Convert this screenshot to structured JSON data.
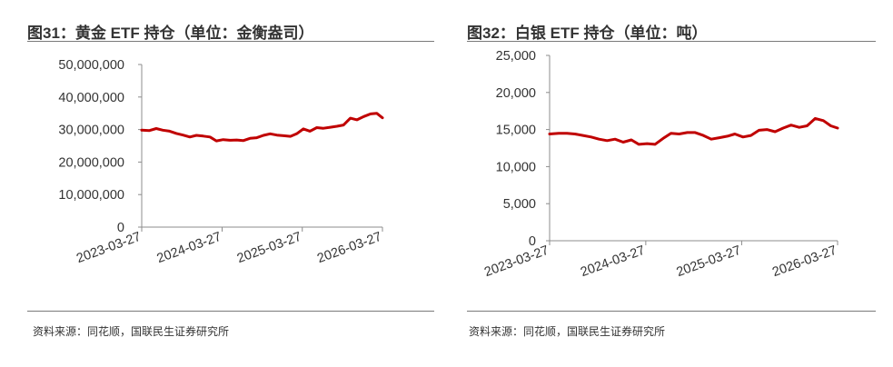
{
  "charts": [
    {
      "id": "left",
      "title": "图31：黄金 ETF 持仓（单位：金衡盎司）",
      "source": "资料来源：同花顺，国联民生证券研究所",
      "y_ticks": [
        "50,000,000",
        "40,000,000",
        "30,000,000",
        "20,000,000",
        "10,000,000",
        "0"
      ],
      "x_ticks": [
        "2023-03-27",
        "2024-03-27",
        "2025-03-27",
        "2026-03-27"
      ]
    },
    {
      "id": "right",
      "title": "图32：白银 ETF 持仓（单位：吨）",
      "source": "资料来源：同花顺，国联民生证券研究所",
      "y_ticks": [
        "25,000",
        "20,000",
        "15,000",
        "10,000",
        "5,000",
        "0"
      ],
      "x_ticks": [
        "2023-03-27",
        "2024-03-27",
        "2025-03-27",
        "2026-03-27"
      ]
    }
  ],
  "chart_data": [
    {
      "type": "line",
      "title": "图31：黄金 ETF 持仓（单位：金衡盎司）",
      "xlabel": "",
      "ylabel": "",
      "ylim": [
        0,
        50000000
      ],
      "xlim": [
        "2023-03-27",
        "2026-03-27"
      ],
      "grid": false,
      "color": "#c00000",
      "series": [
        {
          "x": [
            "2023-03-27",
            "2023-05-01",
            "2023-06-01",
            "2023-07-01",
            "2023-08-01",
            "2023-09-01",
            "2023-10-01",
            "2023-11-01",
            "2023-12-01",
            "2024-01-01",
            "2024-02-01",
            "2024-03-01",
            "2024-04-01",
            "2024-05-01",
            "2024-06-01",
            "2024-07-01",
            "2024-08-01",
            "2024-09-01",
            "2024-10-01",
            "2024-11-01",
            "2024-12-01",
            "2025-01-01",
            "2025-02-01",
            "2025-03-01",
            "2025-04-01",
            "2025-05-01",
            "2025-06-01",
            "2025-07-01",
            "2025-08-01",
            "2025-09-01",
            "2025-10-01",
            "2025-11-01",
            "2025-12-01",
            "2026-01-01",
            "2026-02-01",
            "2026-03-01",
            "2026-03-27"
          ],
          "y": [
            29800000,
            29700000,
            30300000,
            29800000,
            29500000,
            28800000,
            28300000,
            27700000,
            28200000,
            28000000,
            27700000,
            26500000,
            26900000,
            26700000,
            26800000,
            26600000,
            27300000,
            27500000,
            28200000,
            28700000,
            28300000,
            28100000,
            27900000,
            28700000,
            30200000,
            29500000,
            30600000,
            30400000,
            30700000,
            31000000,
            31400000,
            33500000,
            33000000,
            34000000,
            34800000,
            35000000,
            33600000
          ]
        }
      ]
    },
    {
      "type": "line",
      "title": "图32：白银 ETF 持仓（单位：吨）",
      "xlabel": "",
      "ylabel": "",
      "ylim": [
        0,
        25000
      ],
      "xlim": [
        "2023-03-27",
        "2026-03-27"
      ],
      "grid": false,
      "color": "#c00000",
      "series": [
        {
          "x": [
            "2023-03-27",
            "2023-05-01",
            "2023-06-01",
            "2023-07-01",
            "2023-08-01",
            "2023-09-01",
            "2023-10-01",
            "2023-11-01",
            "2023-12-01",
            "2024-01-01",
            "2024-02-01",
            "2024-03-01",
            "2024-04-01",
            "2024-05-01",
            "2024-06-01",
            "2024-07-01",
            "2024-08-01",
            "2024-09-01",
            "2024-10-01",
            "2024-11-01",
            "2024-12-01",
            "2025-01-01",
            "2025-02-01",
            "2025-03-01",
            "2025-04-01",
            "2025-05-01",
            "2025-06-01",
            "2025-07-01",
            "2025-08-01",
            "2025-09-01",
            "2025-10-01",
            "2025-11-01",
            "2025-12-01",
            "2026-01-01",
            "2026-02-01",
            "2026-03-01",
            "2026-03-27"
          ],
          "y": [
            14400,
            14500,
            14500,
            14400,
            14200,
            14000,
            13700,
            13500,
            13700,
            13300,
            13600,
            13000,
            13100,
            13000,
            13800,
            14500,
            14400,
            14600,
            14600,
            14200,
            13700,
            13900,
            14100,
            14400,
            14000,
            14200,
            14900,
            15000,
            14700,
            15200,
            15600,
            15300,
            15500,
            16500,
            16200,
            15500,
            15200
          ]
        }
      ]
    }
  ]
}
